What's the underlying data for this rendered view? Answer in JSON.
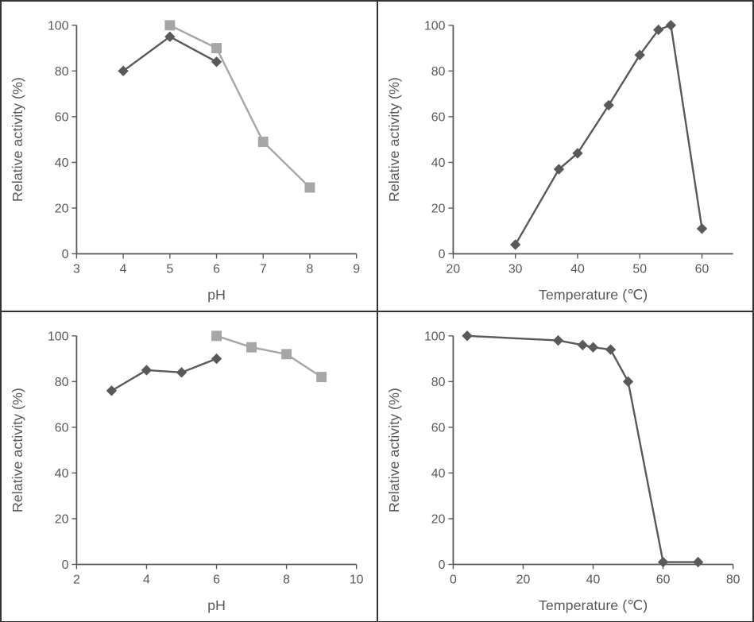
{
  "layout": {
    "cols": 2,
    "rows": 2,
    "total_w": 949,
    "total_h": 783
  },
  "defaults": {
    "background_color": "#ffffff",
    "border_color": "#333333",
    "axis_color": "#595959",
    "tick_fontsize": 16,
    "title_fontsize": 18,
    "font_family": "Arial",
    "line_width": 2.4,
    "marker_size": 6,
    "darker": "#595959",
    "lighter": "#a6a6a6"
  },
  "charts": [
    {
      "id": "tl",
      "type": "line",
      "xlabel": "pH",
      "ylabel": "Relative  activity (%)",
      "xlim": [
        3,
        9
      ],
      "xtick_step": 1,
      "ylim": [
        0,
        100
      ],
      "ytick_step": 20,
      "series": [
        {
          "name": "series-dark",
          "marker": "diamond",
          "color": "#595959",
          "x": [
            4,
            5,
            6
          ],
          "y": [
            80,
            95,
            84
          ]
        },
        {
          "name": "series-light",
          "marker": "square",
          "color": "#a6a6a6",
          "x": [
            5,
            6,
            7,
            8
          ],
          "y": [
            100,
            90,
            49,
            29
          ]
        }
      ]
    },
    {
      "id": "tr",
      "type": "line",
      "xlabel": "Temperature (℃)",
      "ylabel": "Relative  activity (%)",
      "xlim": [
        20,
        65
      ],
      "xticks": [
        20,
        30,
        40,
        50,
        60
      ],
      "ylim": [
        0,
        100
      ],
      "ytick_step": 20,
      "series": [
        {
          "name": "series-dark",
          "marker": "diamond",
          "color": "#595959",
          "x": [
            30,
            37,
            40,
            45,
            50,
            53,
            55,
            60
          ],
          "y": [
            4,
            37,
            44,
            65,
            87,
            98,
            100,
            11
          ]
        }
      ]
    },
    {
      "id": "bl",
      "type": "line",
      "xlabel": "pH",
      "ylabel": "Relative  activity (%)",
      "xlim": [
        2,
        10
      ],
      "xtick_step": 2,
      "ylim": [
        0,
        100
      ],
      "ytick_step": 20,
      "series": [
        {
          "name": "series-dark",
          "marker": "diamond",
          "color": "#595959",
          "x": [
            3,
            4,
            5,
            6
          ],
          "y": [
            76,
            85,
            84,
            90
          ]
        },
        {
          "name": "series-light",
          "marker": "square",
          "color": "#a6a6a6",
          "x": [
            6,
            7,
            8,
            9
          ],
          "y": [
            100,
            95,
            92,
            82
          ]
        }
      ]
    },
    {
      "id": "br",
      "type": "line",
      "xlabel": "Temperature (℃)",
      "ylabel": "Relative  activity (%)",
      "xlim": [
        0,
        80
      ],
      "xtick_step": 20,
      "ylim": [
        0,
        100
      ],
      "ytick_step": 20,
      "series": [
        {
          "name": "series-dark",
          "marker": "diamond",
          "color": "#595959",
          "x": [
            4,
            30,
            37,
            40,
            45,
            50,
            60,
            70
          ],
          "y": [
            100,
            98,
            96,
            95,
            94,
            80,
            1,
            1
          ]
        }
      ]
    }
  ]
}
